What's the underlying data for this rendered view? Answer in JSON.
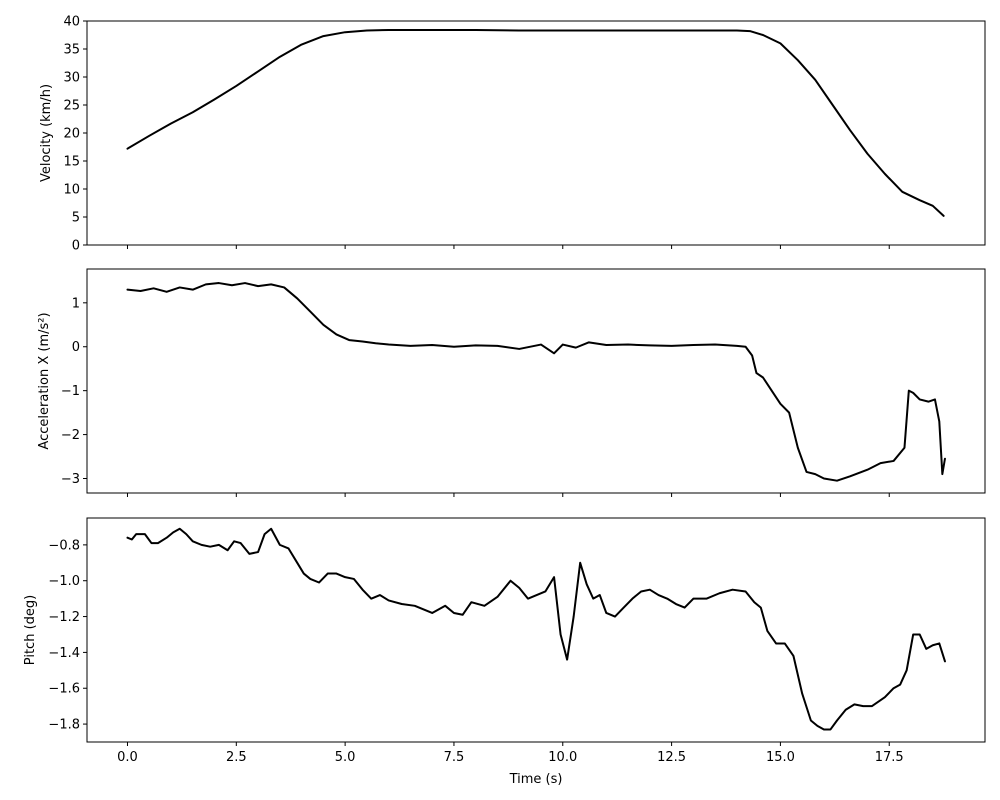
{
  "chart_data": [
    {
      "type": "line",
      "title": "",
      "xlabel": "",
      "ylabel": "Velocity (km/h)",
      "xlim": [
        -0.93,
        19.7
      ],
      "ylim": [
        0,
        40
      ],
      "xticks": [
        0.0,
        2.5,
        5.0,
        7.5,
        10.0,
        12.5,
        15.0,
        17.5
      ],
      "xtick_labels": [],
      "yticks": [
        0,
        5,
        10,
        15,
        20,
        25,
        30,
        35,
        40
      ],
      "ytick_labels": [
        "0",
        "5",
        "10",
        "15",
        "20",
        "25",
        "30",
        "35",
        "40"
      ],
      "grid": false,
      "series": [
        {
          "color": "#000000",
          "x": [
            0.0,
            0.5,
            1.0,
            1.5,
            2.0,
            2.5,
            3.0,
            3.5,
            4.0,
            4.5,
            5.0,
            5.5,
            6.0,
            7.0,
            8.0,
            9.0,
            10.0,
            11.0,
            12.0,
            13.0,
            14.0,
            14.3,
            14.6,
            15.0,
            15.4,
            15.8,
            16.2,
            16.6,
            17.0,
            17.4,
            17.8,
            18.2,
            18.5,
            18.75
          ],
          "y": [
            17.2,
            19.5,
            21.7,
            23.7,
            26.0,
            28.4,
            31.0,
            33.6,
            35.8,
            37.3,
            38.0,
            38.3,
            38.4,
            38.4,
            38.4,
            38.3,
            38.3,
            38.3,
            38.3,
            38.3,
            38.3,
            38.2,
            37.5,
            36.0,
            33.0,
            29.5,
            25.0,
            20.5,
            16.3,
            12.7,
            9.5,
            8.0,
            7.0,
            5.2
          ]
        }
      ]
    },
    {
      "type": "line",
      "title": "",
      "xlabel": "",
      "ylabel": "Acceleration X (m/s²)",
      "xlim": [
        -0.93,
        19.7
      ],
      "ylim": [
        -3.33,
        1.77
      ],
      "xticks": [
        0.0,
        2.5,
        5.0,
        7.5,
        10.0,
        12.5,
        15.0,
        17.5
      ],
      "xtick_labels": [],
      "yticks": [
        -3,
        -2,
        -1,
        0,
        1
      ],
      "ytick_labels": [
        "−3",
        "−2",
        "−1",
        "0",
        "1"
      ],
      "grid": false,
      "series": [
        {
          "color": "#000000",
          "x": [
            0.0,
            0.3,
            0.6,
            0.9,
            1.2,
            1.5,
            1.8,
            2.1,
            2.4,
            2.7,
            3.0,
            3.3,
            3.6,
            3.9,
            4.2,
            4.5,
            4.8,
            5.1,
            5.4,
            5.7,
            6.0,
            6.5,
            7.0,
            7.5,
            8.0,
            8.5,
            9.0,
            9.5,
            9.8,
            10.0,
            10.3,
            10.6,
            11.0,
            11.5,
            12.0,
            12.5,
            13.0,
            13.5,
            14.0,
            14.2,
            14.35,
            14.45,
            14.6,
            14.8,
            15.0,
            15.2,
            15.4,
            15.6,
            15.8,
            16.0,
            16.3,
            16.6,
            17.0,
            17.3,
            17.6,
            17.85,
            17.95,
            18.05,
            18.2,
            18.4,
            18.55,
            18.65,
            18.72,
            18.78
          ],
          "y": [
            1.3,
            1.27,
            1.33,
            1.25,
            1.35,
            1.3,
            1.42,
            1.45,
            1.4,
            1.45,
            1.38,
            1.42,
            1.35,
            1.1,
            0.8,
            0.5,
            0.28,
            0.15,
            0.12,
            0.08,
            0.05,
            0.02,
            0.04,
            0.0,
            0.03,
            0.02,
            -0.05,
            0.05,
            -0.15,
            0.05,
            -0.02,
            0.1,
            0.04,
            0.05,
            0.03,
            0.02,
            0.04,
            0.05,
            0.02,
            0.0,
            -0.2,
            -0.6,
            -0.7,
            -1.0,
            -1.3,
            -1.5,
            -2.3,
            -2.85,
            -2.9,
            -3.0,
            -3.05,
            -2.95,
            -2.8,
            -2.65,
            -2.6,
            -2.3,
            -1.0,
            -1.05,
            -1.2,
            -1.25,
            -1.2,
            -1.7,
            -2.9,
            -2.55
          ]
        }
      ]
    },
    {
      "type": "line",
      "title": "",
      "xlabel": "Time (s)",
      "ylabel": "Pitch (deg)",
      "xlim": [
        -0.93,
        19.7
      ],
      "ylim": [
        -1.9,
        -0.65
      ],
      "xticks": [
        0.0,
        2.5,
        5.0,
        7.5,
        10.0,
        12.5,
        15.0,
        17.5
      ],
      "xtick_labels": [
        "0.0",
        "2.5",
        "5.0",
        "7.5",
        "10.0",
        "12.5",
        "15.0",
        "17.5"
      ],
      "yticks": [
        -1.8,
        -1.6,
        -1.4,
        -1.2,
        -1.0,
        -0.8
      ],
      "ytick_labels": [
        "−1.8",
        "−1.6",
        "−1.4",
        "−1.2",
        "−1.0",
        "−0.8"
      ],
      "grid": false,
      "series": [
        {
          "color": "#000000",
          "x": [
            0.0,
            0.1,
            0.2,
            0.4,
            0.55,
            0.7,
            0.9,
            1.05,
            1.2,
            1.35,
            1.5,
            1.7,
            1.9,
            2.1,
            2.3,
            2.45,
            2.6,
            2.8,
            3.0,
            3.15,
            3.3,
            3.5,
            3.7,
            3.9,
            4.05,
            4.2,
            4.4,
            4.6,
            4.8,
            5.0,
            5.2,
            5.4,
            5.6,
            5.8,
            6.0,
            6.3,
            6.6,
            7.0,
            7.3,
            7.5,
            7.7,
            7.9,
            8.2,
            8.5,
            8.8,
            9.0,
            9.2,
            9.4,
            9.6,
            9.8,
            9.95,
            10.1,
            10.25,
            10.4,
            10.55,
            10.7,
            10.85,
            11.0,
            11.2,
            11.4,
            11.6,
            11.8,
            12.0,
            12.2,
            12.4,
            12.6,
            12.8,
            13.0,
            13.3,
            13.6,
            13.9,
            14.2,
            14.4,
            14.55,
            14.7,
            14.9,
            15.1,
            15.3,
            15.5,
            15.7,
            15.85,
            16.0,
            16.15,
            16.3,
            16.5,
            16.7,
            16.9,
            17.1,
            17.4,
            17.6,
            17.75,
            17.9,
            18.05,
            18.2,
            18.35,
            18.5,
            18.65,
            18.78
          ],
          "y": [
            -0.76,
            -0.77,
            -0.74,
            -0.74,
            -0.79,
            -0.79,
            -0.76,
            -0.73,
            -0.71,
            -0.74,
            -0.78,
            -0.8,
            -0.81,
            -0.8,
            -0.83,
            -0.78,
            -0.79,
            -0.85,
            -0.84,
            -0.74,
            -0.71,
            -0.8,
            -0.82,
            -0.9,
            -0.96,
            -0.99,
            -1.01,
            -0.96,
            -0.96,
            -0.98,
            -0.99,
            -1.05,
            -1.1,
            -1.08,
            -1.11,
            -1.13,
            -1.14,
            -1.18,
            -1.14,
            -1.18,
            -1.19,
            -1.12,
            -1.14,
            -1.09,
            -1.0,
            -1.04,
            -1.1,
            -1.08,
            -1.06,
            -0.98,
            -1.3,
            -1.44,
            -1.2,
            -0.9,
            -1.02,
            -1.1,
            -1.08,
            -1.18,
            -1.2,
            -1.15,
            -1.1,
            -1.06,
            -1.05,
            -1.08,
            -1.1,
            -1.13,
            -1.15,
            -1.1,
            -1.1,
            -1.07,
            -1.05,
            -1.06,
            -1.12,
            -1.15,
            -1.28,
            -1.35,
            -1.35,
            -1.42,
            -1.63,
            -1.78,
            -1.81,
            -1.83,
            -1.83,
            -1.78,
            -1.72,
            -1.69,
            -1.7,
            -1.7,
            -1.65,
            -1.6,
            -1.58,
            -1.5,
            -1.3,
            -1.3,
            -1.38,
            -1.36,
            -1.35,
            -1.45
          ]
        }
      ]
    }
  ]
}
